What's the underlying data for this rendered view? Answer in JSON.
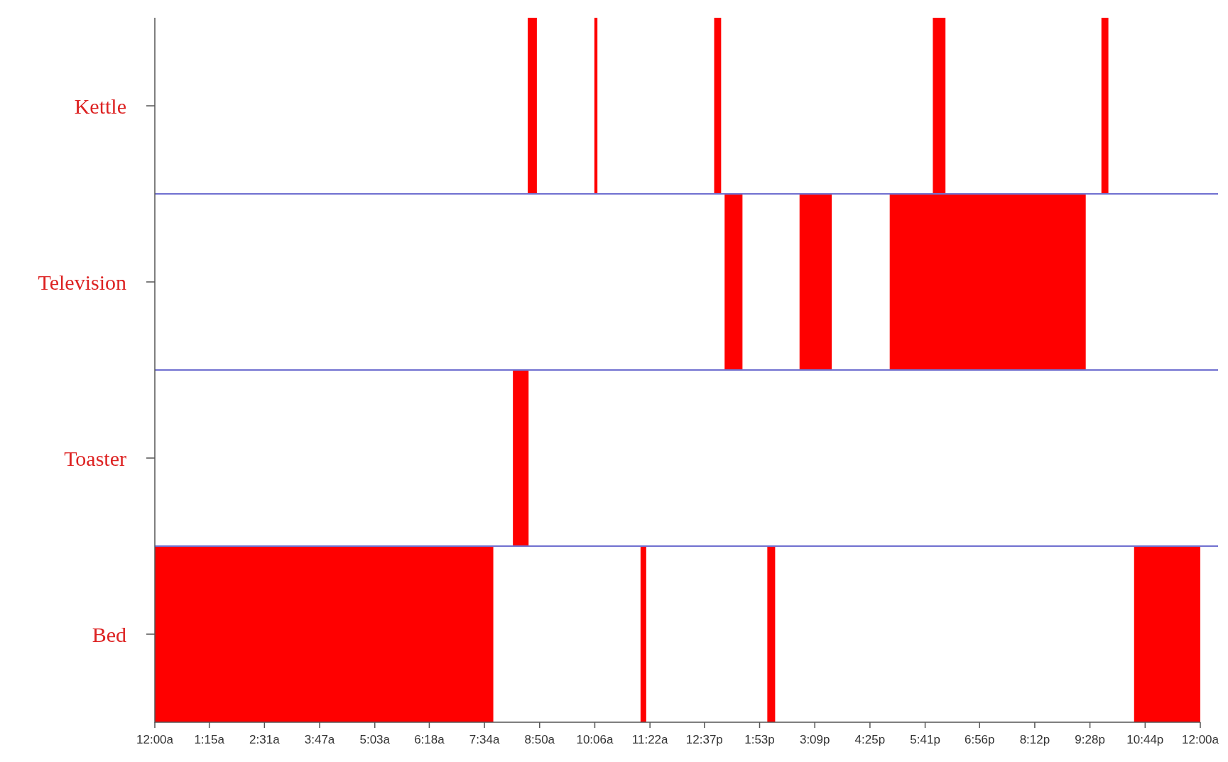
{
  "chart_data": {
    "type": "bar",
    "orientation": "horizontal",
    "categories": [
      "Kettle",
      "Television",
      "Toaster",
      "Bed"
    ],
    "series": [
      {
        "color": "#ff0000",
        "values": [
          0.21,
          0.41,
          0.36,
          7.77
        ],
        "base": [
          8.56,
          13.08,
          8.22,
          0
        ]
      },
      {
        "color": "#ff0000",
        "values": [
          0.07,
          0.74,
          null,
          0.13
        ],
        "base": [
          10.09,
          14.8,
          null,
          11.15
        ]
      },
      {
        "color": "#ff0000",
        "values": [
          0.16,
          4.5,
          null,
          0.18
        ],
        "base": [
          12.84,
          16.87,
          null,
          14.06
        ]
      },
      {
        "color": "#ff0000",
        "values": [
          0.29,
          null,
          null,
          1.52
        ],
        "base": [
          17.86,
          null,
          null,
          22.48
        ]
      },
      {
        "color": "#ff0000",
        "values": [
          0.16,
          null,
          null,
          null
        ],
        "base": [
          21.73,
          null,
          null,
          null
        ]
      }
    ],
    "xlim": [
      0,
      24
    ],
    "xticks": [
      {
        "value": 0,
        "label": "12:00a"
      },
      {
        "value": 1.25,
        "label": "1:15a"
      },
      {
        "value": 2.5167,
        "label": "2:31a"
      },
      {
        "value": 3.7833,
        "label": "3:47a"
      },
      {
        "value": 5.05,
        "label": "5:03a"
      },
      {
        "value": 6.3,
        "label": "6:18a"
      },
      {
        "value": 7.5667,
        "label": "7:34a"
      },
      {
        "value": 8.8333,
        "label": "8:50a"
      },
      {
        "value": 10.1,
        "label": "10:06a"
      },
      {
        "value": 11.3667,
        "label": "11:22a"
      },
      {
        "value": 12.6167,
        "label": "12:37p"
      },
      {
        "value": 13.8833,
        "label": "1:53p"
      },
      {
        "value": 15.15,
        "label": "3:09p"
      },
      {
        "value": 16.4167,
        "label": "4:25p"
      },
      {
        "value": 17.6833,
        "label": "5:41p"
      },
      {
        "value": 18.9333,
        "label": "6:56p"
      },
      {
        "value": 20.2,
        "label": "8:12p"
      },
      {
        "value": 21.4667,
        "label": "9:28p"
      },
      {
        "value": 22.7333,
        "label": "10:44p"
      },
      {
        "value": 24,
        "label": "12:00a"
      }
    ]
  }
}
